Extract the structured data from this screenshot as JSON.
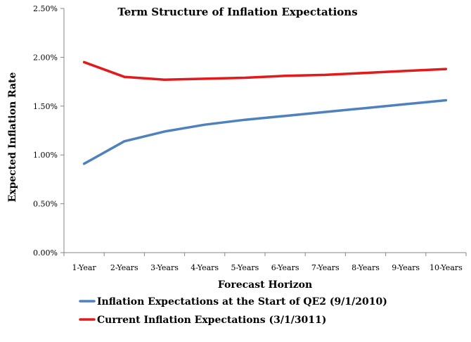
{
  "chart_data": {
    "type": "line",
    "title": "Term Structure of Inflation Expectations",
    "xlabel": "Forecast Horizon",
    "ylabel": "Expected Inflation Rate",
    "categories": [
      "1-Year",
      "2-Years",
      "3-Years",
      "4-Years",
      "5-Years",
      "6-Years",
      "7-Years",
      "8-Years",
      "9-Years",
      "10-Years"
    ],
    "ylim": [
      0,
      2.5
    ],
    "yticks": [
      0,
      0.5,
      1.0,
      1.5,
      2.0,
      2.5
    ],
    "ytick_labels": [
      "0.00%",
      "0.50%",
      "1.00%",
      "1.50%",
      "2.00%",
      "2.50%"
    ],
    "grid": false,
    "legend_position": "bottom",
    "series": [
      {
        "name": "Inflation Expectations at the Start of QE2 (9/1/2010)",
        "color": "#4f81bd",
        "values": [
          0.91,
          1.14,
          1.24,
          1.31,
          1.36,
          1.4,
          1.44,
          1.48,
          1.52,
          1.56
        ]
      },
      {
        "name": "Current Inflation Expectations (3/1/3011)",
        "color": "#e31a1c",
        "values": [
          1.95,
          1.8,
          1.77,
          1.78,
          1.79,
          1.81,
          1.82,
          1.84,
          1.86,
          1.88
        ]
      }
    ]
  }
}
